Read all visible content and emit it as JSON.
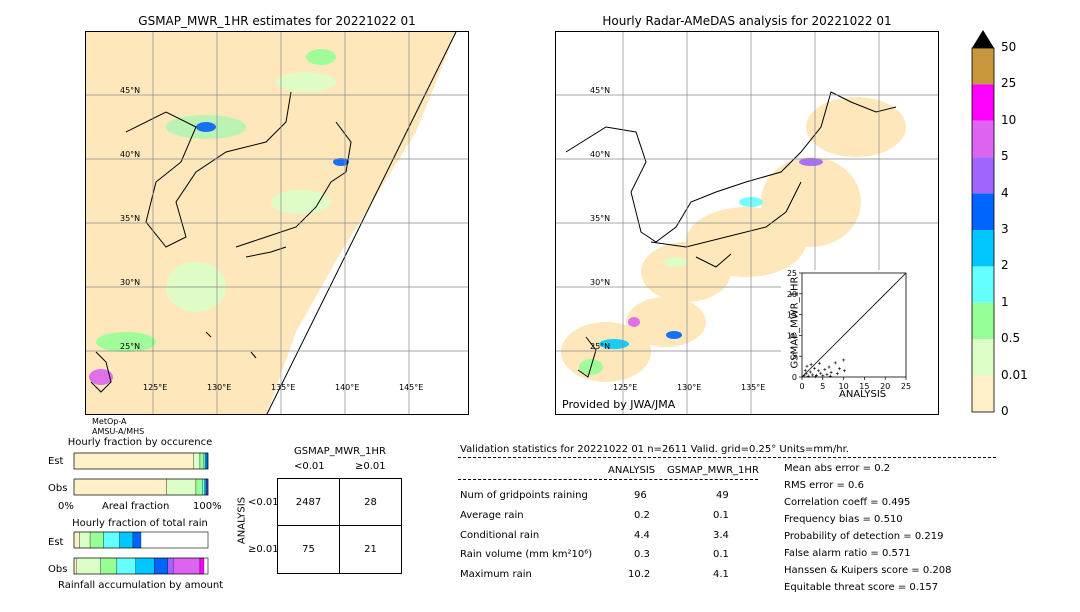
{
  "left_map": {
    "title": "GSMAP_MWR_1HR estimates for 20221022 01",
    "lat_labels": [
      "45°N",
      "40°N",
      "35°N",
      "30°N",
      "25°N"
    ],
    "lon_labels": [
      "125°E",
      "130°E",
      "135°E",
      "140°E",
      "145°E"
    ],
    "sensor_1": "MetOp-A",
    "sensor_2": "AMSU-A/MHS"
  },
  "right_map": {
    "title": "Hourly Radar-AMeDAS analysis for 20221022 01",
    "lat_labels": [
      "45°N",
      "40°N",
      "35°N",
      "30°N",
      "25°N"
    ],
    "lon_labels": [
      "125°E",
      "130°E",
      "135°E"
    ],
    "credit": "Provided by JWA/JMA"
  },
  "colorbar": {
    "labels": [
      "50",
      "25",
      "10",
      "5",
      "4",
      "3",
      "2",
      "1",
      "0.5",
      "0.01",
      "0"
    ],
    "colors": [
      "#c8963c",
      "#ff00ff",
      "#dc64f0",
      "#a064ff",
      "#0064ff",
      "#00c8ff",
      "#64ffff",
      "#96ff96",
      "#dcffc8",
      "#fff0c8"
    ],
    "over_color": "#000000"
  },
  "chart_data": [
    {
      "type": "scatter",
      "title": "",
      "xlabel": "ANALYSIS",
      "ylabel": "GSMAP_MWR_1HR",
      "xlim": [
        0,
        25
      ],
      "ylim": [
        0,
        25
      ],
      "x_ticks": [
        "0",
        "5",
        "10",
        "15",
        "20",
        " 25"
      ],
      "y_ticks": [
        "0",
        "5",
        "10",
        "15",
        "20",
        "25"
      ],
      "series": [
        {
          "points": [
            [
              0.5,
              0.3
            ],
            [
              1,
              0.8
            ],
            [
              1.5,
              0.2
            ],
            [
              2,
              1.2
            ],
            [
              2.5,
              0.5
            ],
            [
              3,
              2.1
            ],
            [
              3.5,
              0.4
            ],
            [
              4,
              1.5
            ],
            [
              4.5,
              0.9
            ],
            [
              5,
              0.3
            ],
            [
              5.5,
              1.8
            ],
            [
              6,
              0.6
            ],
            [
              6.5,
              2.4
            ],
            [
              7,
              1.1
            ],
            [
              8,
              3.4
            ],
            [
              8.5,
              0.8
            ],
            [
              9,
              2.0
            ],
            [
              10,
              4.1
            ],
            [
              10.2,
              1.5
            ],
            [
              1.2,
              2.6
            ],
            [
              2.2,
              3.0
            ],
            [
              0.8,
              1.6
            ],
            [
              3.2,
              0.1
            ],
            [
              6.8,
              0.2
            ],
            [
              4.2,
              3.3
            ]
          ]
        }
      ]
    },
    {
      "type": "bar",
      "title": "Hourly fraction by occurence",
      "categories": [
        "Est",
        "Obs"
      ],
      "xlabel": "Areal fraction",
      "x_tick_left": "0%",
      "x_tick_right": "100%",
      "segments": {
        "Est": [
          {
            "color": "#fff0c8",
            "value": 0.89
          },
          {
            "color": "#dcffc8",
            "value": 0.05
          },
          {
            "color": "#96ff96",
            "value": 0.03
          },
          {
            "color": "#64ffff",
            "value": 0.01
          },
          {
            "color": "#00c8ff",
            "value": 0.01
          },
          {
            "color": "#0064ff",
            "value": 0.01
          }
        ],
        "Obs": [
          {
            "color": "#fff0c8",
            "value": 0.69
          },
          {
            "color": "#dcffc8",
            "value": 0.22
          },
          {
            "color": "#96ff96",
            "value": 0.05
          },
          {
            "color": "#64ffff",
            "value": 0.015
          },
          {
            "color": "#00c8ff",
            "value": 0.01
          },
          {
            "color": "#0064ff",
            "value": 0.008
          },
          {
            "color": "#a064ff",
            "value": 0.007
          }
        ]
      }
    },
    {
      "type": "bar",
      "title": "Hourly fraction of total rain",
      "categories": [
        "Est",
        "Obs"
      ],
      "xlabel": "Rainfall accumulation by amount",
      "segments": {
        "Est": [
          {
            "color": "#fff0c8",
            "value": 0.04
          },
          {
            "color": "#dcffc8",
            "value": 0.08
          },
          {
            "color": "#96ff96",
            "value": 0.1
          },
          {
            "color": "#64ffff",
            "value": 0.12
          },
          {
            "color": "#00c8ff",
            "value": 0.1
          },
          {
            "color": "#0064ff",
            "value": 0.06
          }
        ],
        "Obs": [
          {
            "color": "#fff0c8",
            "value": 0.02
          },
          {
            "color": "#dcffc8",
            "value": 0.18
          },
          {
            "color": "#96ff96",
            "value": 0.12
          },
          {
            "color": "#64ffff",
            "value": 0.14
          },
          {
            "color": "#00c8ff",
            "value": 0.14
          },
          {
            "color": "#0064ff",
            "value": 0.1
          },
          {
            "color": "#a064ff",
            "value": 0.04
          },
          {
            "color": "#dc64f0",
            "value": 0.2
          },
          {
            "color": "#ff00ff",
            "value": 0.03
          }
        ]
      }
    }
  ],
  "contingency": {
    "title": "GSMAP_MWR_1HR",
    "col_lt": "<0.01",
    "col_ge": "≥0.01",
    "row_axis": "ANALYSIS",
    "row_lt": "<0.01",
    "row_ge": "≥0.01",
    "cells": [
      "2487",
      "28",
      "75",
      "21"
    ]
  },
  "validation": {
    "header": "Validation statistics for 20221022 01  n=2611 Valid. grid=0.25° Units=mm/hr.",
    "col_analysis": "ANALYSIS",
    "col_gsmap": "GSMAP_MWR_1HR",
    "rows": [
      {
        "label": "Num of gridpoints raining",
        "analysis": "96",
        "gsmap": "49"
      },
      {
        "label": "Average rain",
        "analysis": "0.2",
        "gsmap": "0.1"
      },
      {
        "label": "Conditional rain",
        "analysis": "4.4",
        "gsmap": "3.4"
      },
      {
        "label": "Rain volume (mm km²10⁶)",
        "analysis": "0.3",
        "gsmap": "0.1"
      },
      {
        "label": "Maximum rain",
        "analysis": "10.2",
        "gsmap": "4.1"
      }
    ],
    "scores": [
      "Mean abs error =    0.2",
      "RMS error =    0.6",
      "Correlation coeff =  0.495",
      "Frequency bias =  0.510",
      "Probability of detection =  0.219",
      "False alarm ratio =  0.571",
      "Hanssen & Kuipers score =  0.208",
      "Equitable threat score =  0.157"
    ]
  }
}
